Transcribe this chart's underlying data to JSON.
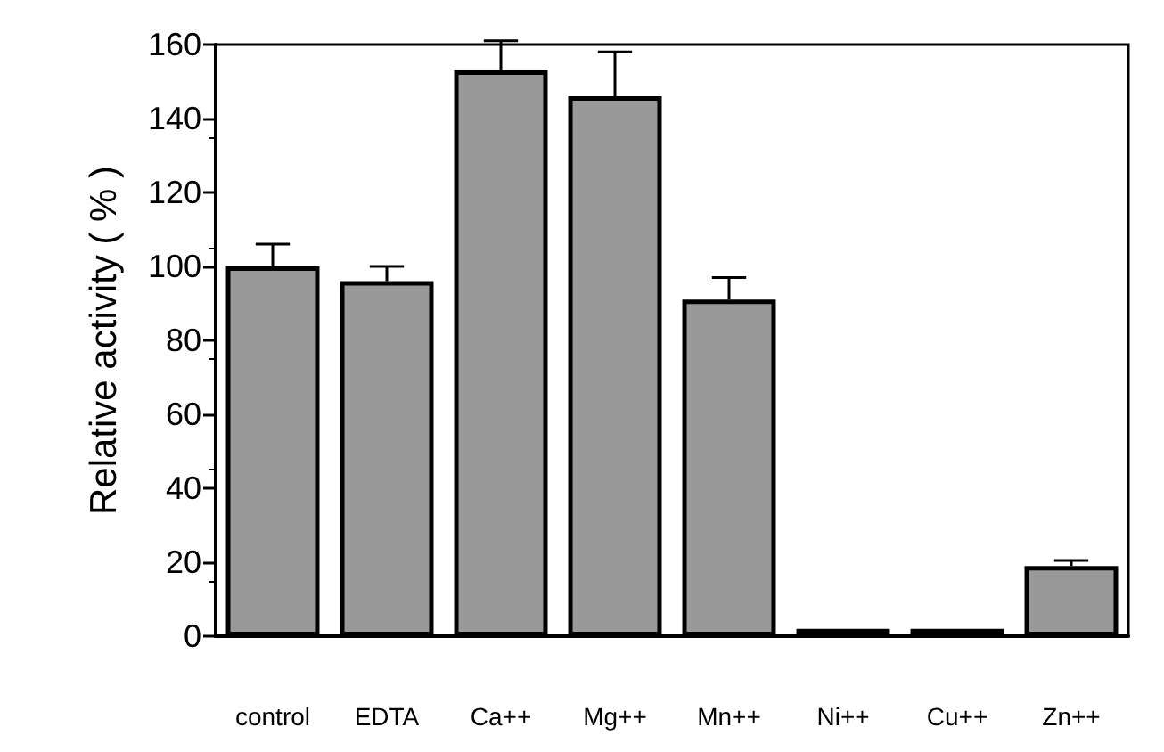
{
  "chart_data": {
    "type": "bar",
    "ylabel": "Relative activity ( % )",
    "categories": [
      "control",
      "EDTA",
      "Ca++",
      "Mg++",
      "Mn++",
      "Ni++",
      "Cu++",
      "Zn++"
    ],
    "values": [
      100,
      96,
      153,
      146,
      91,
      2,
      2,
      19
    ],
    "errors": [
      [
        100,
        106
      ],
      [
        96,
        100
      ],
      [
        153,
        161
      ],
      [
        146,
        158
      ],
      [
        91,
        97
      ],
      null,
      null,
      [
        19,
        20.5
      ]
    ],
    "color": "#999999",
    "ylim": [
      0,
      160
    ],
    "yticks": [
      0,
      20,
      40,
      60,
      80,
      100,
      120,
      140,
      160
    ],
    "grid": false
  }
}
